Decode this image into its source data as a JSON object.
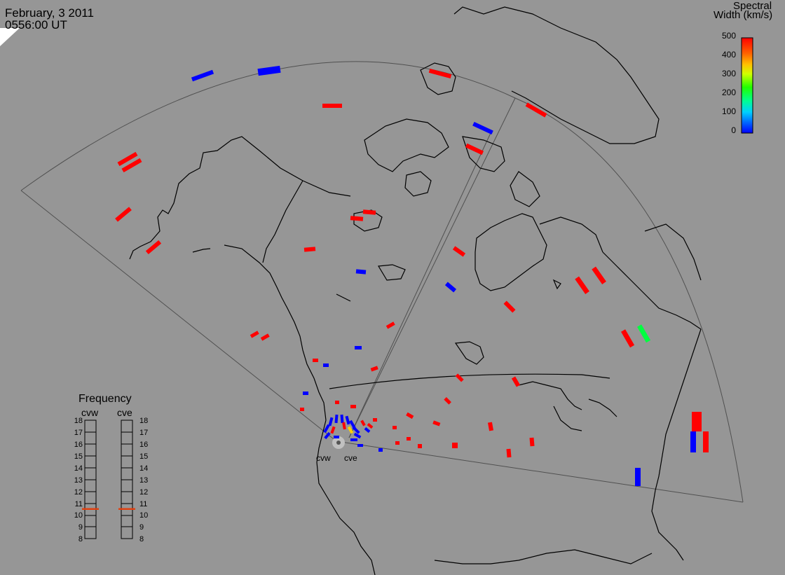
{
  "header": {
    "date": "February, 3 2011",
    "time": "0556:00 UT"
  },
  "colorbar": {
    "title_line1": "Spectral",
    "title_line2": "Width (km/s)",
    "ticks": [
      "500",
      "400",
      "300",
      "200",
      "100",
      "0"
    ],
    "range": [
      0,
      500
    ],
    "colors": [
      "#0000ff",
      "#00a0ff",
      "#00ff80",
      "#40ff00",
      "#ffd000",
      "#ff8000",
      "#ff0000"
    ]
  },
  "frequency_panel": {
    "title": "Frequency",
    "columns": [
      {
        "label": "cvw",
        "indicator_value": 10.5
      },
      {
        "label": "cve",
        "indicator_value": 10.5
      }
    ],
    "ticks": [
      "18",
      "17",
      "16",
      "15",
      "14",
      "13",
      "12",
      "11",
      "10",
      "9",
      "8"
    ],
    "indicator_color": "#e04010"
  },
  "radars": [
    {
      "label": "cvw"
    },
    {
      "label": "cve"
    }
  ],
  "colors": {
    "background": "#969696",
    "coast": "#000000",
    "field_of_view": "#555555"
  }
}
